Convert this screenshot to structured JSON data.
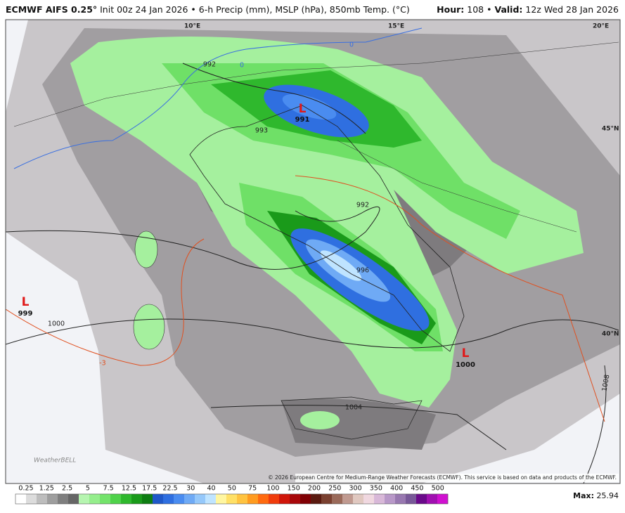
{
  "header": {
    "model": "ECMWF AIFS 0.25°",
    "description": "Init 00z 24 Jan 2026 • 6-h Precip (mm), MSLP (hPa), 850mb Temp. (°C)",
    "hour_label": "Hour:",
    "hour_value": "108 •",
    "valid_label": "Valid:",
    "valid_value": "12z Wed 28 Jan 2026"
  },
  "map": {
    "lows": [
      {
        "symbol": "L",
        "value": 991
      },
      {
        "symbol": "L",
        "value": 999
      },
      {
        "symbol": "L",
        "value": 1000
      }
    ],
    "contour_labels": [
      992,
      993,
      992,
      996,
      1000,
      1004,
      1008,
      0,
      0,
      -3
    ],
    "grid_labels": [
      "10°E",
      "15°E",
      "20°E",
      "45°N",
      "40°N"
    ],
    "credit": "© 2026 European Centre for Medium-Range Weather Forecasts (ECMWF). This service is based on data and products of the ECMWF.",
    "logo": "WeatherBELL"
  },
  "legend": {
    "levels": [
      0.25,
      1.25,
      2.5,
      5,
      7.5,
      12.5,
      17.5,
      22.5,
      30,
      40,
      50,
      75,
      100,
      150,
      200,
      250,
      300,
      350,
      400,
      450,
      500
    ],
    "colors": [
      "#ffffff",
      "#dcdcdc",
      "#bdbdbd",
      "#9e9e9e",
      "#7f7f7f",
      "#666666",
      "#b6f5b0",
      "#95ee8c",
      "#74e36b",
      "#4fd24a",
      "#2fb82d",
      "#1a9a1a",
      "#0e7d12",
      "#1f58c8",
      "#2f6fe0",
      "#4a8cf0",
      "#6faaf5",
      "#95c8fa",
      "#bfe4ff",
      "#fff6a0",
      "#ffe066",
      "#ffc340",
      "#ff9b20",
      "#ff6a10",
      "#f03c0c",
      "#d0160a",
      "#a8080a",
      "#800004",
      "#5a1a10",
      "#7a4030",
      "#9a6a5a",
      "#c09a90",
      "#e0c8c0",
      "#f0d8e0",
      "#d8b8d8",
      "#b898c8",
      "#9878b0",
      "#785898",
      "#6a0a8a",
      "#a010b0",
      "#d010d0"
    ],
    "max_label": "Max:",
    "max_value": 25.94
  }
}
